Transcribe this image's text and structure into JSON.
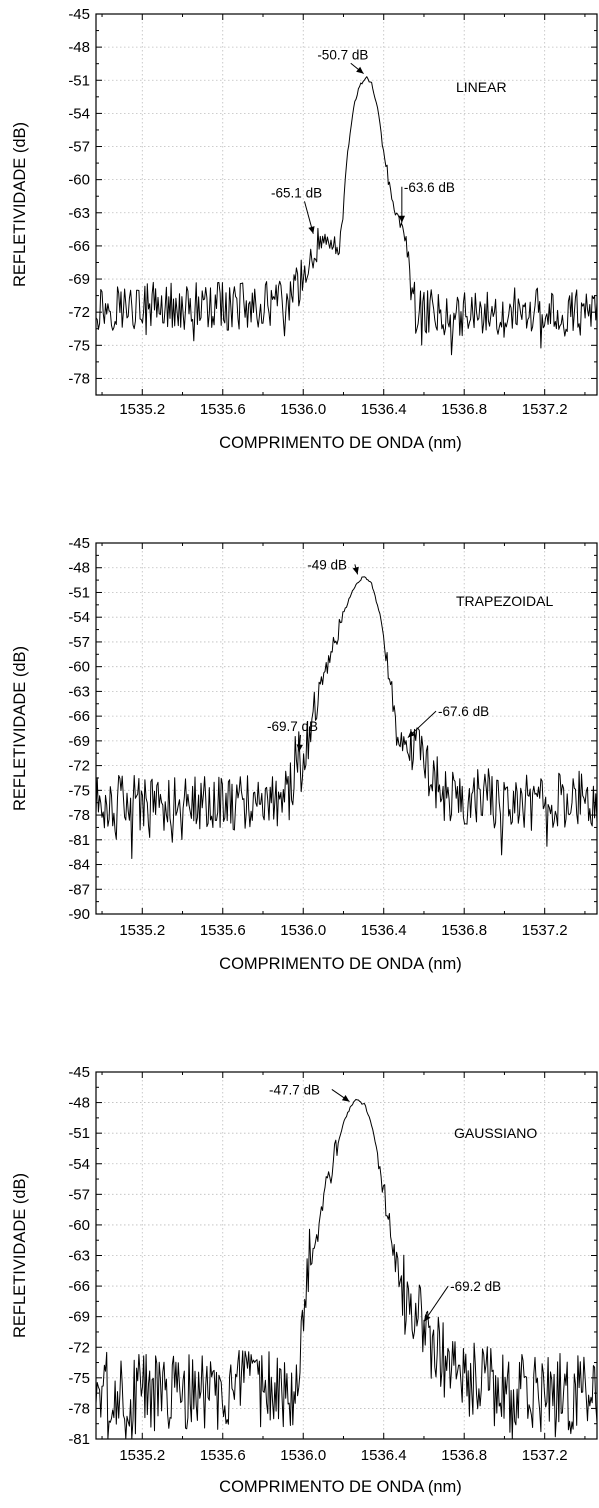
{
  "chart_data": [
    {
      "type": "line",
      "xlabel": "COMPRIMENTO DE ONDA (nm)",
      "ylabel": "REFLETIVIDADE (dB)",
      "xlim": [
        1534.97,
        1537.46
      ],
      "ylim": [
        -79.5,
        -45
      ],
      "xticks": [
        1535.2,
        1535.6,
        1536.0,
        1536.4,
        1536.8,
        1537.2
      ],
      "xtick_labels": [
        "1535.2",
        "1535.6",
        "1536.0",
        "1536.4",
        "1536.8",
        "1537.2"
      ],
      "yticks": [
        -45,
        -48,
        -51,
        -54,
        -57,
        -60,
        -63,
        -66,
        -69,
        -72,
        -75,
        -78
      ],
      "ytick_labels": [
        "-45",
        "-48",
        "-51",
        "-54",
        "-57",
        "-60",
        "-63",
        "-66",
        "-69",
        "-72",
        "-75",
        "-78"
      ],
      "grid": true,
      "series": [
        {
          "label": "LINEAR",
          "peak_x": 1536.31,
          "peak_y": -50.7,
          "profile": [
            [
              1534.97,
              -71.5
            ],
            [
              1535.2,
              -71.5
            ],
            [
              1535.6,
              -71.5
            ],
            [
              1535.9,
              -71.3
            ],
            [
              1535.98,
              -69.8
            ],
            [
              1536.02,
              -67.5
            ],
            [
              1536.05,
              -66.2
            ],
            [
              1536.1,
              -65.4
            ],
            [
              1536.15,
              -65.8
            ],
            [
              1536.18,
              -66.5
            ],
            [
              1536.2,
              -62.5
            ],
            [
              1536.22,
              -57.5
            ],
            [
              1536.25,
              -53.5
            ],
            [
              1536.28,
              -51.5
            ],
            [
              1536.31,
              -50.7
            ],
            [
              1536.34,
              -51.3
            ],
            [
              1536.37,
              -53.5
            ],
            [
              1536.4,
              -57.5
            ],
            [
              1536.43,
              -61.0
            ],
            [
              1536.46,
              -63.2
            ],
            [
              1536.49,
              -64.2
            ],
            [
              1536.52,
              -66.5
            ],
            [
              1536.54,
              -70.5
            ],
            [
              1536.56,
              -72.0
            ],
            [
              1536.8,
              -72.0
            ],
            [
              1537.2,
              -72.0
            ],
            [
              1537.46,
              -72.0
            ]
          ],
          "noise_amplitude": 2.2
        }
      ],
      "annotations": [
        {
          "text": "-50.7 dB",
          "x": 1536.07,
          "y": -49.1,
          "arrow_to": [
            1536.3,
            -50.4
          ]
        },
        {
          "text": "-65.1 dB",
          "x": 1535.84,
          "y": -61.6,
          "arrow_to": [
            1536.05,
            -64.9
          ]
        },
        {
          "text": "-63.6 dB",
          "x": 1536.5,
          "y": -61.1,
          "arrow_to": [
            1536.49,
            -63.9
          ]
        }
      ]
    },
    {
      "type": "line",
      "xlabel": "COMPRIMENTO DE ONDA (nm)",
      "ylabel": "REFLETIVIDADE (dB)",
      "xlim": [
        1534.97,
        1537.46
      ],
      "ylim": [
        -90,
        -45
      ],
      "xticks": [
        1535.2,
        1535.6,
        1536.0,
        1536.4,
        1536.8,
        1537.2
      ],
      "xtick_labels": [
        "1535.2",
        "1535.6",
        "1536.0",
        "1536.4",
        "1536.8",
        "1537.2"
      ],
      "yticks": [
        -45,
        -48,
        -51,
        -54,
        -57,
        -60,
        -63,
        -66,
        -69,
        -72,
        -75,
        -78,
        -81,
        -84,
        -87,
        -90
      ],
      "ytick_labels": [
        "-45",
        "-48",
        "-51",
        "-54",
        "-57",
        "-60",
        "-63",
        "-66",
        "-69",
        "-72",
        "-75",
        "-78",
        "-81",
        "-84",
        "-87",
        "-90"
      ],
      "grid": true,
      "series": [
        {
          "label": "TRAPEZOIDAL",
          "peak_x": 1536.3,
          "peak_y": -49,
          "profile": [
            [
              1534.97,
              -76.5
            ],
            [
              1535.3,
              -76.5
            ],
            [
              1535.6,
              -76.5
            ],
            [
              1535.93,
              -76.0
            ],
            [
              1535.96,
              -71.5
            ],
            [
              1536.0,
              -70.5
            ],
            [
              1536.03,
              -70.0
            ],
            [
              1536.05,
              -66.5
            ],
            [
              1536.07,
              -63.5
            ],
            [
              1536.1,
              -61.0
            ],
            [
              1536.15,
              -57.5
            ],
            [
              1536.2,
              -53.5
            ],
            [
              1536.25,
              -50.5
            ],
            [
              1536.3,
              -49.0
            ],
            [
              1536.34,
              -50.0
            ],
            [
              1536.38,
              -53.5
            ],
            [
              1536.42,
              -59.5
            ],
            [
              1536.45,
              -64.5
            ],
            [
              1536.47,
              -68.5
            ],
            [
              1536.5,
              -69.5
            ],
            [
              1536.55,
              -69.0
            ],
            [
              1536.6,
              -71.5
            ],
            [
              1536.7,
              -75.5
            ],
            [
              1537.0,
              -76.0
            ],
            [
              1537.46,
              -76.0
            ]
          ],
          "noise_amplitude": 3.5
        }
      ],
      "annotations": [
        {
          "text": "-49 dB",
          "x": 1536.02,
          "y": -48.2,
          "arrow_to": [
            1536.27,
            -48.8
          ]
        },
        {
          "text": "-69.7 dB",
          "x": 1535.82,
          "y": -67.8,
          "arrow_to": [
            1535.98,
            -70.3
          ]
        },
        {
          "text": "-67.6 dB",
          "x": 1536.67,
          "y": -66.0,
          "arrow_to": [
            1536.52,
            -68.6
          ]
        }
      ]
    },
    {
      "type": "line",
      "xlabel": "COMPRIMENTO DE ONDA (nm)",
      "ylabel": "REFLETIVIDADE (dB)",
      "xlim": [
        1534.97,
        1537.46
      ],
      "ylim": [
        -81,
        -45
      ],
      "xticks": [
        1535.2,
        1535.6,
        1536.0,
        1536.4,
        1536.8,
        1537.2
      ],
      "xtick_labels": [
        "1535.2",
        "1535.6",
        "1536.0",
        "1536.4",
        "1536.8",
        "1537.2"
      ],
      "yticks": [
        -45,
        -48,
        -51,
        -54,
        -57,
        -60,
        -63,
        -66,
        -69,
        -72,
        -75,
        -78,
        -81
      ],
      "ytick_labels": [
        "-45",
        "-48",
        "-51",
        "-54",
        "-57",
        "-60",
        "-63",
        "-66",
        "-69",
        "-72",
        "-75",
        "-78",
        "-81"
      ],
      "grid": true,
      "series": [
        {
          "label": "GAUSSIANO",
          "peak_x": 1536.27,
          "peak_y": -47.7,
          "profile": [
            [
              1534.97,
              -76.5
            ],
            [
              1535.5,
              -76.5
            ],
            [
              1535.95,
              -76.0
            ],
            [
              1535.98,
              -72.0
            ],
            [
              1536.0,
              -68.5
            ],
            [
              1536.03,
              -64.5
            ],
            [
              1536.07,
              -60.5
            ],
            [
              1536.11,
              -57.0
            ],
            [
              1536.15,
              -53.5
            ],
            [
              1536.2,
              -50.0
            ],
            [
              1536.24,
              -48.2
            ],
            [
              1536.27,
              -47.7
            ],
            [
              1536.31,
              -48.3
            ],
            [
              1536.35,
              -51.0
            ],
            [
              1536.4,
              -56.5
            ],
            [
              1536.44,
              -61.5
            ],
            [
              1536.48,
              -65.5
            ],
            [
              1536.52,
              -68.5
            ],
            [
              1536.58,
              -69.8
            ],
            [
              1536.65,
              -71.5
            ],
            [
              1536.72,
              -74.5
            ],
            [
              1537.0,
              -76.5
            ],
            [
              1537.46,
              -76.5
            ]
          ],
          "noise_amplitude": 4.0
        }
      ],
      "annotations": [
        {
          "text": "-47.7 dB",
          "x": 1535.83,
          "y": -47.2,
          "arrow_to": [
            1536.23,
            -47.9
          ]
        },
        {
          "text": "-69.2 dB",
          "x": 1536.73,
          "y": -66.5,
          "arrow_to": [
            1536.6,
            -69.5
          ]
        }
      ]
    }
  ]
}
